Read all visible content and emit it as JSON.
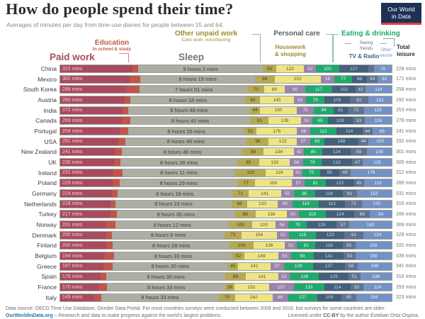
{
  "header": {
    "title": "How do people spend their time?",
    "subtitle": "Averages of minutes per day from time-use diaries for people between 15 and 64.",
    "logo_line1": "Our World",
    "logo_line2": "in Data"
  },
  "columns": {
    "paid_work": "Paid work",
    "education": "Education",
    "education_sub": "In school & study",
    "sleep": "Sleep",
    "other_unpaid": "Other unpaid work",
    "other_unpaid_sub": "Care work, volunteering",
    "personal_care": "Personal care",
    "housework_1": "Housework",
    "housework_2": "& shopping",
    "eating": "Eating & drinking",
    "seeing_1": "Seeing",
    "seeing_2": "friends",
    "tv": "TV & Radio",
    "other_leisure_1": "Other",
    "other_leisure_2": "leisure",
    "total_1": "Total",
    "total_2": "leisure"
  },
  "colors": {
    "logo_bg": "#1d3156",
    "logo_stripe": "#e23d47",
    "link_blue": "#2571a9"
  },
  "chart_data": {
    "type": "bar",
    "stacked": true,
    "orientation": "horizontal",
    "title": "How do people spend their time?",
    "subtitle": "Averages of minutes per day from time-use diaries for people between 15 and 64.",
    "unit": "minutes per day",
    "axis_total_minutes": 1440,
    "min_value_for_label": 35,
    "categories": [
      "China",
      "Mexico",
      "South Korea",
      "Austria",
      "India",
      "Canada",
      "Portugal",
      "USA",
      "New Zealand",
      "UK",
      "Ireland",
      "Poland",
      "Germany",
      "Netherlands",
      "Turkey",
      "Norway",
      "Denmark",
      "Finland",
      "Belgium",
      "Greece",
      "Spain",
      "France",
      "Italy"
    ],
    "series": [
      {
        "key": "paid",
        "name": "Paid work",
        "color": "#a94b5c",
        "label_suffix": " mins",
        "values": [
          315,
          302,
          288,
          280,
          272,
          269,
          259,
          251,
          241,
          235,
          231,
          229,
          224,
          218,
          217,
          201,
          200,
          200,
          194,
          187,
          176,
          170,
          149
        ]
      },
      {
        "key": "education",
        "name": "Education (in school & study)",
        "color": "#c0564a",
        "hide_labels": true,
        "estimated": true,
        "values": [
          24,
          46,
          57,
          26,
          24,
          36,
          36,
          31,
          27,
          27,
          39,
          31,
          25,
          23,
          28,
          40,
          25,
          28,
          41,
          41,
          25,
          34,
          28
        ]
      },
      {
        "key": "sleep",
        "name": "Sleep",
        "color": "#adada1",
        "values": [
          542,
          499,
          471,
          498,
          528,
          520,
          506,
          528,
          526,
          508,
          491,
          509,
          498,
          503,
          515,
          492,
          489,
          508,
          513,
          500,
          516,
          513,
          513
        ],
        "labels": [
          "9 hours 2 mins",
          "8 hours 19 mins",
          "7 hours 51 mins",
          "8 hours 18 mins",
          "8 hours 48 mins",
          "8 hours 40 mins",
          "8 hours 26 mins",
          "8 hours 48 mins",
          "8 hours 46 mins",
          "8 hours 28 mins",
          "8 hours 11 mins",
          "8 hours 29 mins",
          "8 hours 18 mins",
          "8 hours 23 mins",
          "8 hours 35 mins",
          "8 hours 12 mins",
          "8 hours 9 mins",
          "8 hours 28 mins",
          "8 hours 33 mins",
          "8 hours 20 mins",
          "8 hours 36 mins",
          "8 hours 33 mins",
          "8 hours 33 mins"
        ]
      },
      {
        "key": "unpaid",
        "name": "Other unpaid work (care work, volunteering)",
        "color": "#b5a954",
        "values": [
          56,
          84,
          70,
          65,
          44,
          81,
          52,
          96,
          89,
          95,
          132,
          77,
          71,
          68,
          88,
          100,
          73,
          104,
          52,
          45,
          89,
          39,
          70
        ]
      },
      {
        "key": "housework",
        "name": "Housework & shopping",
        "color": "#ede584",
        "values": [
          123,
          202,
          89,
          145,
          160,
          139,
          176,
          122,
          134,
          133,
          118,
          160,
          141,
          133,
          138,
          103,
          154,
          136,
          149,
          141,
          141,
          151,
          162
        ]
      },
      {
        "key": "personal",
        "name": "Personal care",
        "color": "#9a84ac",
        "values": [
          52,
          58,
          90,
          55,
          75,
          52,
          58,
          57,
          42,
          58,
          42,
          57,
          55,
          65,
          50,
          56,
          52,
          52,
          53,
          57,
          51,
          107,
          68
        ]
      },
      {
        "key": "eating",
        "name": "Eating & drinking",
        "color": "#1fa96c",
        "values": [
          100,
          77,
          117,
          79,
          84,
          65,
          112,
          63,
          80,
          79,
          75,
          91,
          95,
          114,
          118,
          79,
          119,
          81,
          99,
          128,
          126,
          133,
          127
        ]
      },
      {
        "key": "tv",
        "name": "TV & Radio",
        "color": "#43607c",
        "values": [
          127,
          66,
          102,
          109,
          61,
          109,
          114,
          148,
          124,
          133,
          85,
          122,
          118,
          113,
          124,
          129,
          123,
          118,
          131,
          137,
          129,
          114,
          104
        ]
      },
      {
        "key": "friends",
        "name": "Seeing friends",
        "color": "#5f7390",
        "values": [
          23,
          44,
          42,
          82,
          73,
          53,
          44,
          44,
          69,
          47,
          49,
          45,
          61,
          73,
          68,
          57,
          81,
          55,
          50,
          56,
          51,
          55,
          65
        ]
      },
      {
        "key": "other_leisure",
        "name": "Other leisure",
        "color": "#7292c5",
        "values": [
          78,
          62,
          114,
          101,
          119,
          116,
          83,
          100,
          108,
          125,
          178,
          119,
          152,
          130,
          94,
          183,
          124,
          158,
          158,
          148,
          136,
          124,
          154
        ]
      }
    ],
    "totals": {
      "name": "Total leisure",
      "values": [
        228,
        172,
        258,
        292,
        253,
        278,
        241,
        292,
        301,
        305,
        312,
        286,
        331,
        316,
        286,
        369,
        328,
        331,
        339,
        341,
        316,
        293,
        323
      ],
      "suffix": " mins"
    }
  },
  "footer": {
    "source": "Data source: OECD Time Use Database, Gender Data Portal. For most countries surveys were conducted between 2009 and 2016, but surveys for some countries are older.",
    "site": "OurWorldinData.org",
    "tagline": " – Research and data to make progress against the world's largest problems.",
    "license_pre": "Licensed under ",
    "license_ccby": "CC-BY",
    "license_post": " by the author Esteban Ortiz-Ospina."
  }
}
